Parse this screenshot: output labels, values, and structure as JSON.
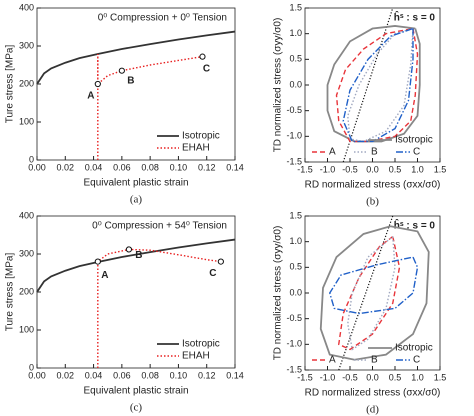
{
  "chart_data": [
    {
      "type": "line",
      "title": "0⁰ Compression + 0⁰ Tension",
      "x_label": "Equivalent plastic strain",
      "y_label": "Ture stress [MPa]",
      "xlim": [
        0,
        0.14
      ],
      "ylim": [
        0,
        400
      ],
      "xticks": [
        {
          "value": 0,
          "label": "0.00"
        },
        0.02,
        0.04,
        0.06,
        0.08,
        {
          "value": 0.1,
          "label": "0.10"
        },
        0.12,
        0.14
      ],
      "yticks": [
        0,
        100,
        200,
        300,
        400
      ],
      "legend": "lower right",
      "series": [
        {
          "name": "Isotropic",
          "color": "#333333",
          "style": "solid",
          "x": [
            0,
            0.005,
            0.01,
            0.02,
            0.03,
            0.043,
            0.06,
            0.08,
            0.1,
            0.12,
            0.14
          ],
          "values": [
            200,
            228,
            241,
            256,
            268,
            279,
            292,
            305,
            317,
            328,
            338
          ]
        },
        {
          "name": "EHAH",
          "color": "#e82020",
          "style": "dotted",
          "x": [
            0.043,
            0.043,
            0.043,
            0.05,
            0.06,
            0.08,
            0.1,
            0.117
          ],
          "values": [
            0,
            279,
            200,
            222,
            235,
            250,
            262,
            272
          ]
        }
      ],
      "points": [
        {
          "label": "A",
          "x": 0.043,
          "y": 200
        },
        {
          "label": "B",
          "x": 0.06,
          "y": 235
        },
        {
          "label": "C",
          "x": 0.117,
          "y": 272
        }
      ],
      "caption": "(a)"
    },
    {
      "type": "line",
      "x_label": "RD normalized stress (σxx/σ0)",
      "y_label": "TD normalized stress (σyy/σ0)",
      "xlim": [
        -1.5,
        1.5
      ],
      "ylim": [
        -1.5,
        1.5
      ],
      "xticks": [
        -1.5,
        {
          "value": -1,
          "label": "-1.0"
        },
        -0.5,
        {
          "value": 0,
          "label": "0.0"
        },
        0.5,
        {
          "value": 1,
          "label": "1.0"
        },
        1.5
      ],
      "yticks": [
        -1.5,
        {
          "value": -1,
          "label": "-1.0"
        },
        -0.5,
        {
          "value": 0,
          "label": "0.0"
        },
        0.5,
        {
          "value": 1,
          "label": "1.0"
        },
        1.5
      ],
      "legend": "lower right",
      "series": [
        {
          "name": "Isotropic",
          "color": "#888888",
          "style": "solid",
          "x": [
            0.95,
            1.05,
            1.05,
            1.0,
            0.7,
            0.2,
            -0.4,
            -0.85,
            -1.0,
            -1.0,
            -0.85,
            -0.5,
            0,
            0.5,
            0.95
          ],
          "values": [
            1.1,
            0.8,
            0,
            -0.6,
            -0.95,
            -1.1,
            -1.1,
            -0.9,
            -0.5,
            0,
            0.4,
            0.85,
            1.1,
            1.15,
            1.1
          ]
        },
        {
          "name": "A",
          "color": "#e8343a",
          "style": "dashed",
          "x": [
            0.9,
            1.0,
            0.95,
            0.85,
            0.5,
            -0.1,
            -0.5,
            -0.75,
            -0.8,
            -0.6,
            -0.2,
            0.3,
            0.9
          ],
          "values": [
            1.1,
            0.6,
            -0.2,
            -0.7,
            -1.0,
            -1.1,
            -1.1,
            -0.7,
            -0.2,
            0.3,
            0.7,
            1.0,
            1.1
          ]
        },
        {
          "name": "B",
          "color": "#a0a8c0",
          "style": "dotted",
          "x": [
            0.9,
            0.85,
            0.7,
            0.3,
            -0.2,
            -0.5,
            -0.55,
            -0.3,
            0.1,
            0.5,
            0.9
          ],
          "values": [
            1.1,
            0.4,
            -0.4,
            -0.9,
            -1.1,
            -1.05,
            -0.6,
            0,
            0.6,
            1.0,
            1.1
          ]
        },
        {
          "name": "C",
          "color": "#2060c8",
          "style": "dashdot",
          "x": [
            0.9,
            0.9,
            0.8,
            0.5,
            0,
            -0.45,
            -0.65,
            -0.5,
            -0.1,
            0.4,
            0.9
          ],
          "values": [
            1.1,
            0.5,
            -0.3,
            -0.85,
            -1.1,
            -1.1,
            -0.7,
            -0.1,
            0.5,
            0.95,
            1.1
          ]
        }
      ],
      "reference_line": {
        "label": "ĥˢ : s = 0",
        "x": [
          -0.65,
          0.45
        ],
        "y": [
          -1.5,
          1.5
        ]
      },
      "caption": "(b)"
    },
    {
      "type": "line",
      "title": "0⁰ Compression + 54⁰ Tension",
      "x_label": "Equivalent plastic strain",
      "y_label": "Ture stress [MPa]",
      "xlim": [
        0,
        0.14
      ],
      "ylim": [
        0,
        400
      ],
      "xticks": [
        {
          "value": 0,
          "label": "0.00"
        },
        0.02,
        0.04,
        0.06,
        0.08,
        {
          "value": 0.1,
          "label": "0.10"
        },
        0.12,
        0.14
      ],
      "yticks": [
        0,
        100,
        200,
        300,
        400
      ],
      "legend": "lower right",
      "series": [
        {
          "name": "Isotropic",
          "color": "#333333",
          "style": "solid",
          "x": [
            0,
            0.005,
            0.01,
            0.02,
            0.03,
            0.043,
            0.06,
            0.08,
            0.1,
            0.12,
            0.14
          ],
          "values": [
            200,
            228,
            241,
            256,
            268,
            279,
            292,
            305,
            317,
            328,
            338
          ]
        },
        {
          "name": "EHAH",
          "color": "#e82020",
          "style": "dotted",
          "x": [
            0.043,
            0.043,
            0.05,
            0.065,
            0.08,
            0.1,
            0.12,
            0.13
          ],
          "values": [
            0,
            280,
            300,
            312,
            310,
            298,
            285,
            280
          ]
        }
      ],
      "points": [
        {
          "label": "A",
          "x": 0.043,
          "y": 280
        },
        {
          "label": "B",
          "x": 0.065,
          "y": 312
        },
        {
          "label": "C",
          "x": 0.13,
          "y": 280
        }
      ],
      "caption": "(c)"
    },
    {
      "type": "line",
      "x_label": "RD normalized stress (σxx/σ0)",
      "y_label": "TD normalized stress (σyy/σ0)",
      "xlim": [
        -1.5,
        1.5
      ],
      "ylim": [
        -1.5,
        1.5
      ],
      "xticks": [
        -1.5,
        {
          "value": -1,
          "label": "-1.0"
        },
        -0.5,
        {
          "value": 0,
          "label": "0.0"
        },
        0.5,
        {
          "value": 1,
          "label": "1.0"
        },
        1.5
      ],
      "yticks": [
        -1.5,
        {
          "value": -1,
          "label": "-1.0"
        },
        -0.5,
        {
          "value": 0,
          "label": "0.0"
        },
        0.5,
        {
          "value": 1,
          "label": "1.0"
        },
        1.5
      ],
      "legend": "lower right",
      "series": [
        {
          "name": "Isotropic",
          "color": "#888888",
          "style": "solid",
          "x": [
            0.4,
            1.0,
            1.25,
            1.2,
            0.9,
            0.3,
            -0.4,
            -0.95,
            -1.15,
            -1.1,
            -0.8,
            -0.2,
            0.4
          ],
          "values": [
            1.3,
            1.2,
            0.8,
            -0.2,
            -0.8,
            -1.2,
            -1.3,
            -1.2,
            -0.7,
            0.1,
            0.7,
            1.15,
            1.3
          ]
        },
        {
          "name": "A",
          "color": "#e8343a",
          "style": "dashed",
          "x": [
            0.45,
            0.6,
            0.45,
            0,
            -0.5,
            -0.75,
            -0.65,
            -0.3,
            0.15,
            0.45
          ],
          "values": [
            1.1,
            0.5,
            -0.2,
            -0.8,
            -1.1,
            -1.0,
            -0.4,
            0.3,
            0.9,
            1.1
          ]
        },
        {
          "name": "B",
          "color": "#a0a8c0",
          "style": "dotted",
          "x": [
            0.45,
            0.5,
            0.3,
            -0.1,
            -0.45,
            -0.55,
            -0.45,
            -0.1,
            0.45
          ],
          "values": [
            1.1,
            0.5,
            -0.3,
            -0.9,
            -1.1,
            -0.6,
            0,
            0.7,
            1.1
          ]
        },
        {
          "name": "C",
          "color": "#2060c8",
          "style": "dashdot",
          "x": [
            0.9,
            1.0,
            0.9,
            0.5,
            -0.3,
            -0.85,
            -0.95,
            -0.7,
            0.1,
            0.9
          ],
          "values": [
            0.7,
            0.5,
            0,
            -0.3,
            -0.4,
            -0.3,
            0,
            0.35,
            0.55,
            0.7
          ]
        }
      ],
      "reference_line": {
        "label": "ĥˢ : s = 0",
        "x": [
          -0.75,
          0.45
        ],
        "y": [
          -1.5,
          1.5
        ]
      },
      "caption": "(d)"
    }
  ]
}
